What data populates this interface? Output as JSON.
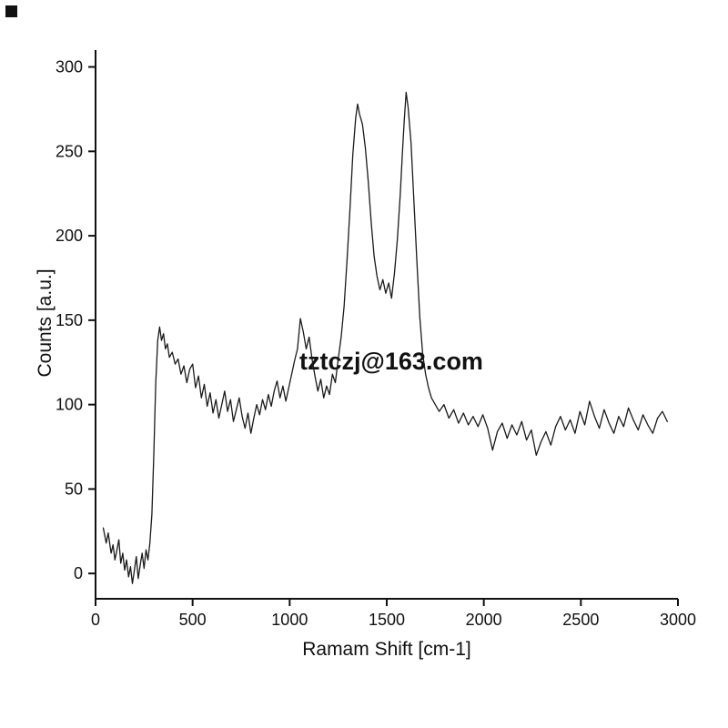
{
  "page": {
    "background": "#ffffff"
  },
  "watermark": {
    "text": "tztczj@163.com",
    "color": "#7a7a7a"
  },
  "chart_data": {
    "type": "line",
    "title": "",
    "xlabel": "Ramam Shift [cm-1]",
    "ylabel": "Counts [a.u.]",
    "xlim": [
      0,
      3000
    ],
    "ylim": [
      -15,
      310
    ],
    "xticks": [
      0,
      500,
      1000,
      1500,
      2000,
      2500,
      3000
    ],
    "yticks": [
      0,
      50,
      100,
      150,
      200,
      250,
      300
    ],
    "grid": false,
    "legend": "none",
    "line_color": "#1a1a1a",
    "axis_color": "#111111",
    "points": [
      [
        40,
        27
      ],
      [
        55,
        18
      ],
      [
        65,
        24
      ],
      [
        80,
        12
      ],
      [
        90,
        17
      ],
      [
        100,
        8
      ],
      [
        110,
        14
      ],
      [
        120,
        20
      ],
      [
        130,
        6
      ],
      [
        140,
        12
      ],
      [
        150,
        2
      ],
      [
        160,
        8
      ],
      [
        170,
        -2
      ],
      [
        180,
        4
      ],
      [
        190,
        -6
      ],
      [
        200,
        2
      ],
      [
        210,
        10
      ],
      [
        220,
        -3
      ],
      [
        230,
        5
      ],
      [
        240,
        12
      ],
      [
        250,
        3
      ],
      [
        260,
        14
      ],
      [
        270,
        8
      ],
      [
        280,
        18
      ],
      [
        290,
        35
      ],
      [
        300,
        70
      ],
      [
        310,
        112
      ],
      [
        320,
        138
      ],
      [
        330,
        146
      ],
      [
        340,
        138
      ],
      [
        350,
        142
      ],
      [
        360,
        133
      ],
      [
        370,
        136
      ],
      [
        380,
        128
      ],
      [
        395,
        131
      ],
      [
        410,
        124
      ],
      [
        425,
        127
      ],
      [
        440,
        118
      ],
      [
        455,
        123
      ],
      [
        470,
        113
      ],
      [
        485,
        121
      ],
      [
        500,
        124
      ],
      [
        515,
        110
      ],
      [
        530,
        117
      ],
      [
        545,
        104
      ],
      [
        560,
        112
      ],
      [
        575,
        99
      ],
      [
        590,
        107
      ],
      [
        605,
        95
      ],
      [
        620,
        103
      ],
      [
        635,
        92
      ],
      [
        650,
        100
      ],
      [
        665,
        108
      ],
      [
        680,
        96
      ],
      [
        695,
        103
      ],
      [
        710,
        90
      ],
      [
        725,
        97
      ],
      [
        740,
        104
      ],
      [
        755,
        93
      ],
      [
        770,
        86
      ],
      [
        785,
        95
      ],
      [
        800,
        83
      ],
      [
        815,
        92
      ],
      [
        830,
        100
      ],
      [
        845,
        94
      ],
      [
        860,
        103
      ],
      [
        875,
        97
      ],
      [
        890,
        106
      ],
      [
        905,
        99
      ],
      [
        920,
        108
      ],
      [
        935,
        114
      ],
      [
        950,
        104
      ],
      [
        965,
        111
      ],
      [
        980,
        102
      ],
      [
        995,
        110
      ],
      [
        1010,
        118
      ],
      [
        1025,
        126
      ],
      [
        1040,
        133
      ],
      [
        1055,
        151
      ],
      [
        1070,
        143
      ],
      [
        1085,
        133
      ],
      [
        1100,
        140
      ],
      [
        1115,
        127
      ],
      [
        1130,
        117
      ],
      [
        1145,
        108
      ],
      [
        1160,
        115
      ],
      [
        1175,
        104
      ],
      [
        1190,
        111
      ],
      [
        1205,
        106
      ],
      [
        1220,
        118
      ],
      [
        1235,
        113
      ],
      [
        1250,
        127
      ],
      [
        1265,
        140
      ],
      [
        1280,
        158
      ],
      [
        1295,
        185
      ],
      [
        1310,
        215
      ],
      [
        1325,
        248
      ],
      [
        1340,
        270
      ],
      [
        1350,
        278
      ],
      [
        1360,
        272
      ],
      [
        1375,
        266
      ],
      [
        1390,
        252
      ],
      [
        1405,
        232
      ],
      [
        1420,
        208
      ],
      [
        1435,
        188
      ],
      [
        1450,
        176
      ],
      [
        1465,
        168
      ],
      [
        1480,
        174
      ],
      [
        1495,
        166
      ],
      [
        1510,
        172
      ],
      [
        1525,
        163
      ],
      [
        1540,
        178
      ],
      [
        1555,
        198
      ],
      [
        1570,
        225
      ],
      [
        1580,
        248
      ],
      [
        1590,
        268
      ],
      [
        1600,
        285
      ],
      [
        1610,
        276
      ],
      [
        1625,
        255
      ],
      [
        1640,
        220
      ],
      [
        1655,
        185
      ],
      [
        1670,
        152
      ],
      [
        1685,
        130
      ],
      [
        1700,
        118
      ],
      [
        1715,
        110
      ],
      [
        1730,
        104
      ],
      [
        1745,
        101
      ],
      [
        1770,
        96
      ],
      [
        1795,
        100
      ],
      [
        1820,
        92
      ],
      [
        1845,
        97
      ],
      [
        1870,
        89
      ],
      [
        1895,
        95
      ],
      [
        1920,
        88
      ],
      [
        1945,
        93
      ],
      [
        1970,
        87
      ],
      [
        1995,
        94
      ],
      [
        2020,
        86
      ],
      [
        2045,
        73
      ],
      [
        2070,
        84
      ],
      [
        2095,
        89
      ],
      [
        2120,
        80
      ],
      [
        2145,
        88
      ],
      [
        2170,
        82
      ],
      [
        2195,
        90
      ],
      [
        2220,
        79
      ],
      [
        2245,
        85
      ],
      [
        2270,
        70
      ],
      [
        2295,
        78
      ],
      [
        2320,
        84
      ],
      [
        2345,
        76
      ],
      [
        2370,
        87
      ],
      [
        2395,
        93
      ],
      [
        2420,
        85
      ],
      [
        2445,
        91
      ],
      [
        2470,
        83
      ],
      [
        2495,
        96
      ],
      [
        2520,
        88
      ],
      [
        2545,
        102
      ],
      [
        2570,
        93
      ],
      [
        2595,
        86
      ],
      [
        2620,
        97
      ],
      [
        2645,
        89
      ],
      [
        2670,
        83
      ],
      [
        2695,
        93
      ],
      [
        2720,
        87
      ],
      [
        2745,
        98
      ],
      [
        2770,
        91
      ],
      [
        2795,
        85
      ],
      [
        2820,
        94
      ],
      [
        2845,
        88
      ],
      [
        2870,
        83
      ],
      [
        2895,
        92
      ],
      [
        2920,
        96
      ],
      [
        2945,
        90
      ]
    ]
  }
}
